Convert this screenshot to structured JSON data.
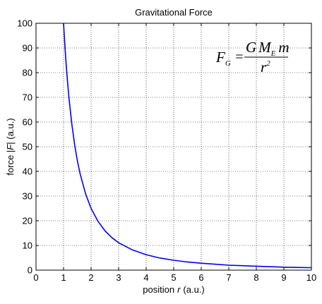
{
  "chart_data": {
    "type": "line",
    "title": "Gravitational Force",
    "xlabel": {
      "prefix": "position",
      "var": "r",
      "suffix": "(a.u.)"
    },
    "ylabel": {
      "prefix": "force |",
      "var": "F",
      "suffix": "| (a.u.)"
    },
    "xlim": [
      0,
      10
    ],
    "ylim": [
      0,
      100
    ],
    "xticks": [
      "0",
      "1",
      "2",
      "3",
      "4",
      "5",
      "6",
      "7",
      "8",
      "9",
      "10"
    ],
    "yticks": [
      "0",
      "10",
      "20",
      "30",
      "40",
      "50",
      "60",
      "70",
      "80",
      "90",
      "100"
    ],
    "grid": true,
    "series": [
      {
        "color": "#0000ff",
        "x": [
          1.0,
          1.05,
          1.1,
          1.15,
          1.2,
          1.3,
          1.4,
          1.5,
          1.6,
          1.8,
          2.0,
          2.25,
          2.5,
          2.75,
          3.0,
          3.5,
          4.0,
          4.5,
          5.0,
          5.5,
          6.0,
          6.5,
          7.0,
          7.5,
          8.0,
          8.5,
          9.0,
          9.5,
          10.0
        ],
        "y": [
          100.0,
          90.7,
          82.6,
          75.6,
          69.4,
          59.2,
          51.0,
          44.4,
          39.1,
          30.9,
          25.0,
          19.8,
          16.0,
          13.2,
          11.1,
          8.2,
          6.25,
          4.9,
          4.0,
          3.3,
          2.8,
          2.4,
          2.0,
          1.8,
          1.6,
          1.4,
          1.2,
          1.1,
          1.0
        ]
      }
    ],
    "annotation": {
      "lhs": "F",
      "lhs_sub": "G",
      "num_g": "G",
      "num_m": "M",
      "num_m_sub": "E",
      "num_tail": "m",
      "den": "r",
      "den_sup": "2"
    }
  }
}
